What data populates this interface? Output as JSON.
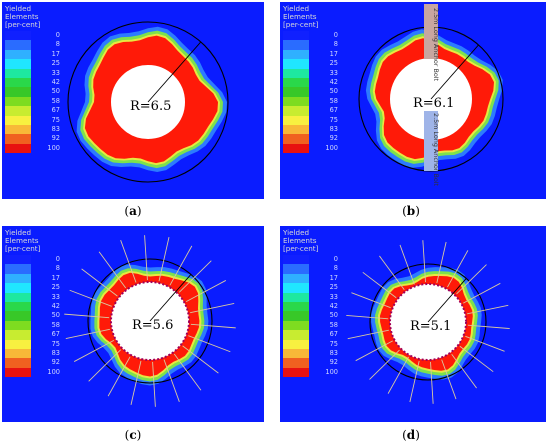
{
  "legend": {
    "title_lines": [
      "Yielded",
      "Elements",
      "[per-cent]"
    ],
    "ticks": [
      "0",
      "8",
      "17",
      "25",
      "33",
      "42",
      "50",
      "58",
      "67",
      "75",
      "83",
      "92",
      "100"
    ],
    "colors": [
      "#1020ff",
      "#2a6cff",
      "#2fb0ff",
      "#20e6ff",
      "#1ee8a0",
      "#2ad84a",
      "#38c828",
      "#7edc20",
      "#c8ec30",
      "#f8f040",
      "#f8b838",
      "#f06020",
      "#e81010"
    ]
  },
  "colors": {
    "background_field": "#0a1cff",
    "yield_zone": "#ff1a08",
    "transition_outer": "#7de24c",
    "transition_inner": "#e8e840"
  },
  "panels": [
    {
      "id": "a",
      "caption_label": "a",
      "radius_label": "R=6.5",
      "has_bolts": false,
      "has_anchors": false
    },
    {
      "id": "b",
      "caption_label": "b",
      "radius_label": "R=6.1",
      "has_bolts": false,
      "has_anchors": true,
      "anchor_top_text": "2.5m Long Anchor Bolt",
      "anchor_bottom_text": "2.5m Long Anchor Bolt"
    },
    {
      "id": "c",
      "caption_label": "c",
      "radius_label": "R=5.6",
      "has_bolts": true,
      "has_anchors": false
    },
    {
      "id": "d",
      "caption_label": "d",
      "radius_label": "R=5.1",
      "has_bolts": true,
      "has_anchors": false
    }
  ]
}
